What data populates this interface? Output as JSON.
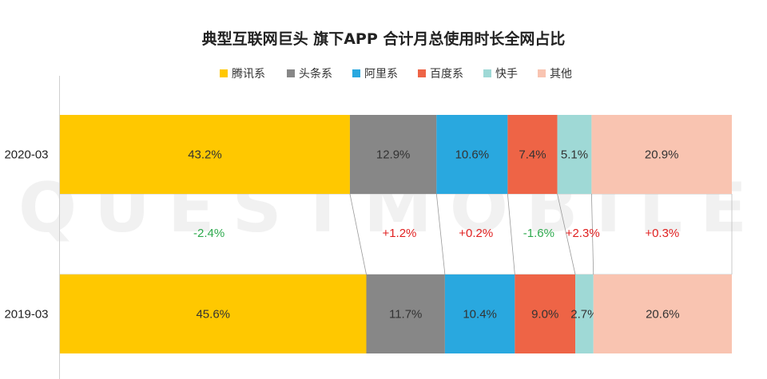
{
  "chart_data": {
    "type": "bar",
    "stacked": "100%",
    "orientation": "horizontal",
    "title": "典型互联网巨头 旗下APP 合计月总使用时长全网占比",
    "legend_position": "top",
    "categories": [
      "2020-03",
      "2019-03"
    ],
    "series": [
      {
        "name": "腾讯系",
        "color": "#FFC800",
        "values": [
          43.2,
          45.6
        ],
        "labels": [
          "43.2%",
          "45.6%"
        ],
        "change": "-2.4%"
      },
      {
        "name": "头条系",
        "color": "#878787",
        "values": [
          12.9,
          11.7
        ],
        "labels": [
          "12.9%",
          "11.7%"
        ],
        "change": "+1.2%"
      },
      {
        "name": "阿里系",
        "color": "#29A8DF",
        "values": [
          10.6,
          10.4
        ],
        "labels": [
          "10.6%",
          "10.4%"
        ],
        "change": "+0.2%"
      },
      {
        "name": "百度系",
        "color": "#EE6446",
        "values": [
          7.4,
          9.0
        ],
        "labels": [
          "7.4%",
          "9.0%"
        ],
        "change": "-1.6%"
      },
      {
        "name": "快手",
        "color": "#9FD9D6",
        "values": [
          5.1,
          2.7
        ],
        "labels": [
          "5.1%",
          "2.7%"
        ],
        "change": "+2.3%"
      },
      {
        "name": "其他",
        "color": "#F9C4B1",
        "values": [
          20.9,
          20.6
        ],
        "labels": [
          "20.9%",
          "20.6%"
        ],
        "change": "+0.3%"
      }
    ],
    "change_colors": {
      "positive": "#E02020",
      "negative": "#2EAA4E"
    },
    "watermark": "QUESTMOBILE"
  }
}
